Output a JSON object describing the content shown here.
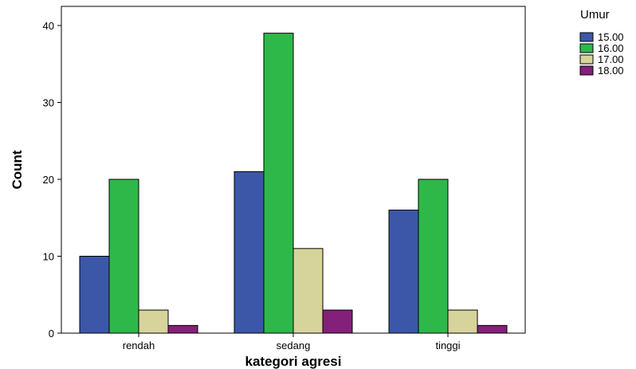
{
  "chart_data": {
    "type": "bar",
    "xlabel": "kategori agresi",
    "ylabel": "Count",
    "ylim": [
      0,
      40
    ],
    "yticks": [
      0,
      10,
      20,
      30,
      40
    ],
    "categories": [
      "rendah",
      "sedang",
      "tinggi"
    ],
    "legend": {
      "title": "Umur",
      "placement": "top-right"
    },
    "series": [
      {
        "name": "15.00",
        "color": "#3d57a8",
        "values": [
          10,
          21,
          16
        ]
      },
      {
        "name": "16.00",
        "color": "#2fb84a",
        "values": [
          20,
          39,
          20
        ]
      },
      {
        "name": "17.00",
        "color": "#d6d49a",
        "values": [
          3,
          11,
          3
        ]
      },
      {
        "name": "18.00",
        "color": "#84207a",
        "values": [
          1,
          3,
          1
        ]
      }
    ]
  }
}
